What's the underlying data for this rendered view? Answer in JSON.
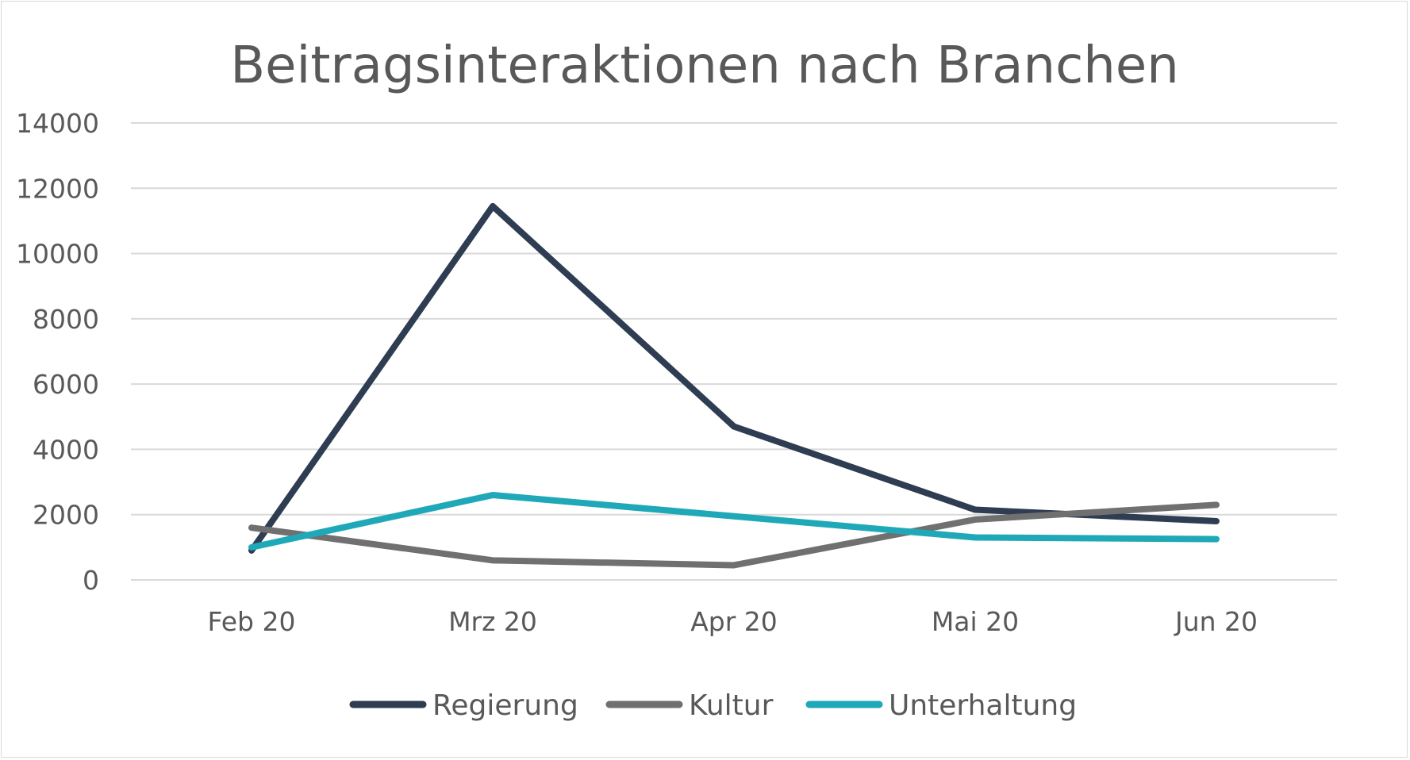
{
  "chart_data": {
    "type": "line",
    "title": "Beitragsinteraktionen nach Branchen",
    "categories": [
      "Feb 20",
      "Mrz 20",
      "Apr 20",
      "Mai 20",
      "Jun 20"
    ],
    "yticks": [
      "0",
      "2000",
      "4000",
      "6000",
      "8000",
      "10000",
      "12000",
      "14000"
    ],
    "ylim": [
      0,
      14000
    ],
    "grid": true,
    "legend": "bottom",
    "series": [
      {
        "name": "Regierung",
        "color": "#2e3d52",
        "values": [
          900,
          11450,
          4700,
          2150,
          1800
        ]
      },
      {
        "name": "Kultur",
        "color": "#707070",
        "values": [
          1600,
          600,
          450,
          1850,
          2300
        ]
      },
      {
        "name": "Unterhaltung",
        "color": "#1fa8b8",
        "values": [
          1000,
          2600,
          1950,
          1300,
          1250
        ]
      }
    ]
  }
}
